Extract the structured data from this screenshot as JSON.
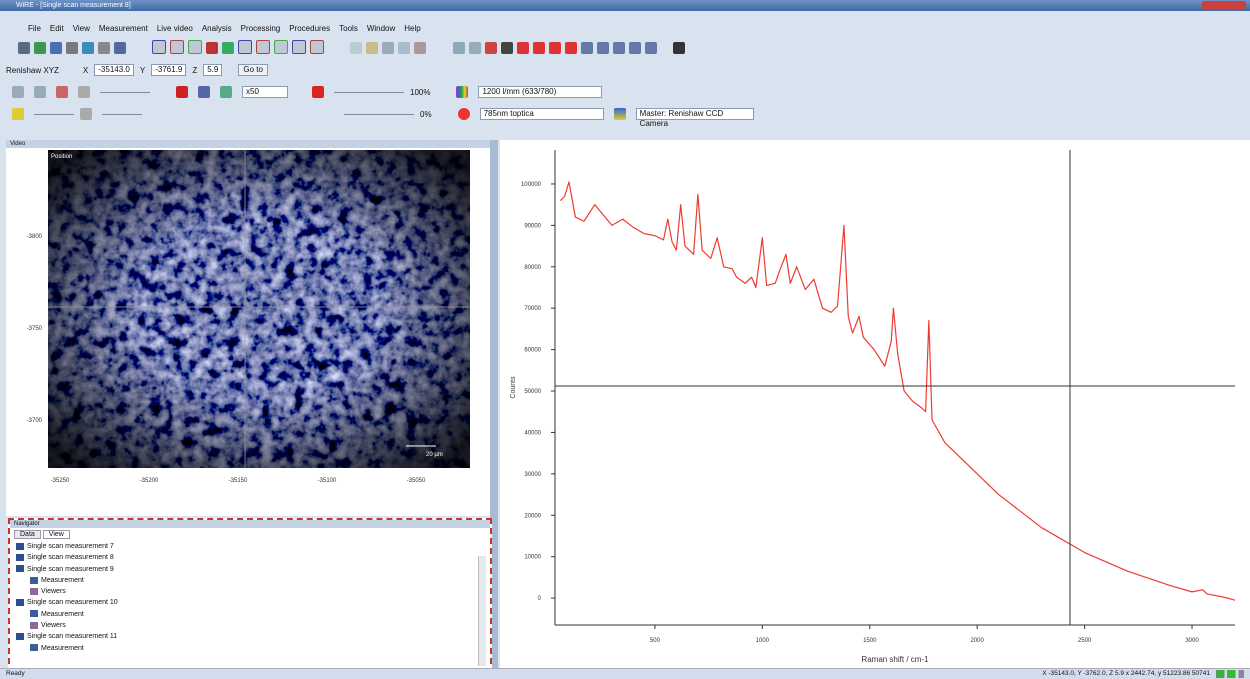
{
  "window": {
    "title": "WiRE - [Single scan measurement 8]"
  },
  "menu": [
    "File",
    "Edit",
    "View",
    "Measurement",
    "Live video",
    "Analysis",
    "Processing",
    "Procedures",
    "Tools",
    "Window",
    "Help"
  ],
  "stage": {
    "name": "Renishaw XYZ",
    "x_label": "X",
    "x": "-35143.0",
    "y_label": "Y",
    "y": "-3761.9",
    "z_label": "Z",
    "z": "5.9",
    "button": "Go to"
  },
  "instrument": {
    "objective": "x50",
    "laser_power": "100%",
    "other_power": "0%",
    "grating": "1200 l/mm (633/780)",
    "laser": "785nm toptica",
    "camera": "Master: Renishaw CCD Camera"
  },
  "video": {
    "panel_title": "Video",
    "label": "Position",
    "scale": "20 µm",
    "yticks": [
      "-3800",
      "-3750",
      "-3700"
    ],
    "xticks": [
      "-35250",
      "-35200",
      "-35150",
      "-35100",
      "-35050"
    ]
  },
  "navigator": {
    "title": "Navigator",
    "tabs": [
      "Data",
      "View"
    ],
    "items": [
      {
        "label": "Single scan measurement 7",
        "children": []
      },
      {
        "label": "Single scan measurement 8",
        "children": []
      },
      {
        "label": "Single scan measurement 9",
        "children": [
          "Measurement",
          "Viewers"
        ]
      },
      {
        "label": "Single scan measurement 10",
        "children": [
          "Measurement",
          "Viewers"
        ]
      },
      {
        "label": "Single scan measurement 11",
        "children": [
          "Measurement"
        ]
      }
    ]
  },
  "chart_data": {
    "type": "line",
    "xlabel": "Raman shift / cm-1",
    "ylabel": "Counts",
    "color": "#ee3b30",
    "x": [
      60,
      80,
      100,
      130,
      170,
      220,
      260,
      300,
      350,
      400,
      450,
      500,
      540,
      560,
      580,
      600,
      620,
      640,
      680,
      700,
      720,
      760,
      790,
      820,
      860,
      880,
      920,
      950,
      970,
      1000,
      1020,
      1060,
      1080,
      1110,
      1130,
      1160,
      1200,
      1240,
      1280,
      1320,
      1350,
      1380,
      1400,
      1420,
      1450,
      1470,
      1520,
      1570,
      1600,
      1610,
      1630,
      1660,
      1700,
      1740,
      1760,
      1775,
      1790,
      1850,
      1950,
      2100,
      2300,
      2500,
      2700,
      2900,
      3000,
      3050,
      3070,
      3150,
      3200
    ],
    "values": [
      96000,
      97000,
      100500,
      92000,
      91000,
      95000,
      92500,
      90000,
      91500,
      89500,
      88000,
      87500,
      86500,
      91500,
      86000,
      84000,
      95000,
      85000,
      83000,
      97500,
      84000,
      82000,
      87000,
      80000,
      79500,
      77500,
      76000,
      77500,
      75000,
      87000,
      75500,
      76000,
      79000,
      83000,
      76000,
      80000,
      74500,
      77000,
      70000,
      69000,
      70500,
      90000,
      68000,
      64000,
      68000,
      63000,
      60000,
      56000,
      62000,
      70000,
      59000,
      50000,
      47500,
      46000,
      45000,
      67000,
      43000,
      37500,
      32500,
      25000,
      17000,
      11000,
      6500,
      3000,
      1500,
      2000,
      1000,
      200,
      -500
    ],
    "xlim": [
      35,
      3200
    ],
    "ylim": [
      -6500,
      108200
    ],
    "xticks": [
      500,
      1000,
      1500,
      2000,
      2500,
      3000
    ],
    "yticks": [
      0,
      10000,
      20000,
      30000,
      40000,
      50000,
      60000,
      70000,
      80000,
      90000,
      100000
    ]
  },
  "status": {
    "left": "Ready",
    "coords": "X -35143.0, Y -3762.0, Z 5.9  x 2442.74, y 51223.86  50741"
  }
}
